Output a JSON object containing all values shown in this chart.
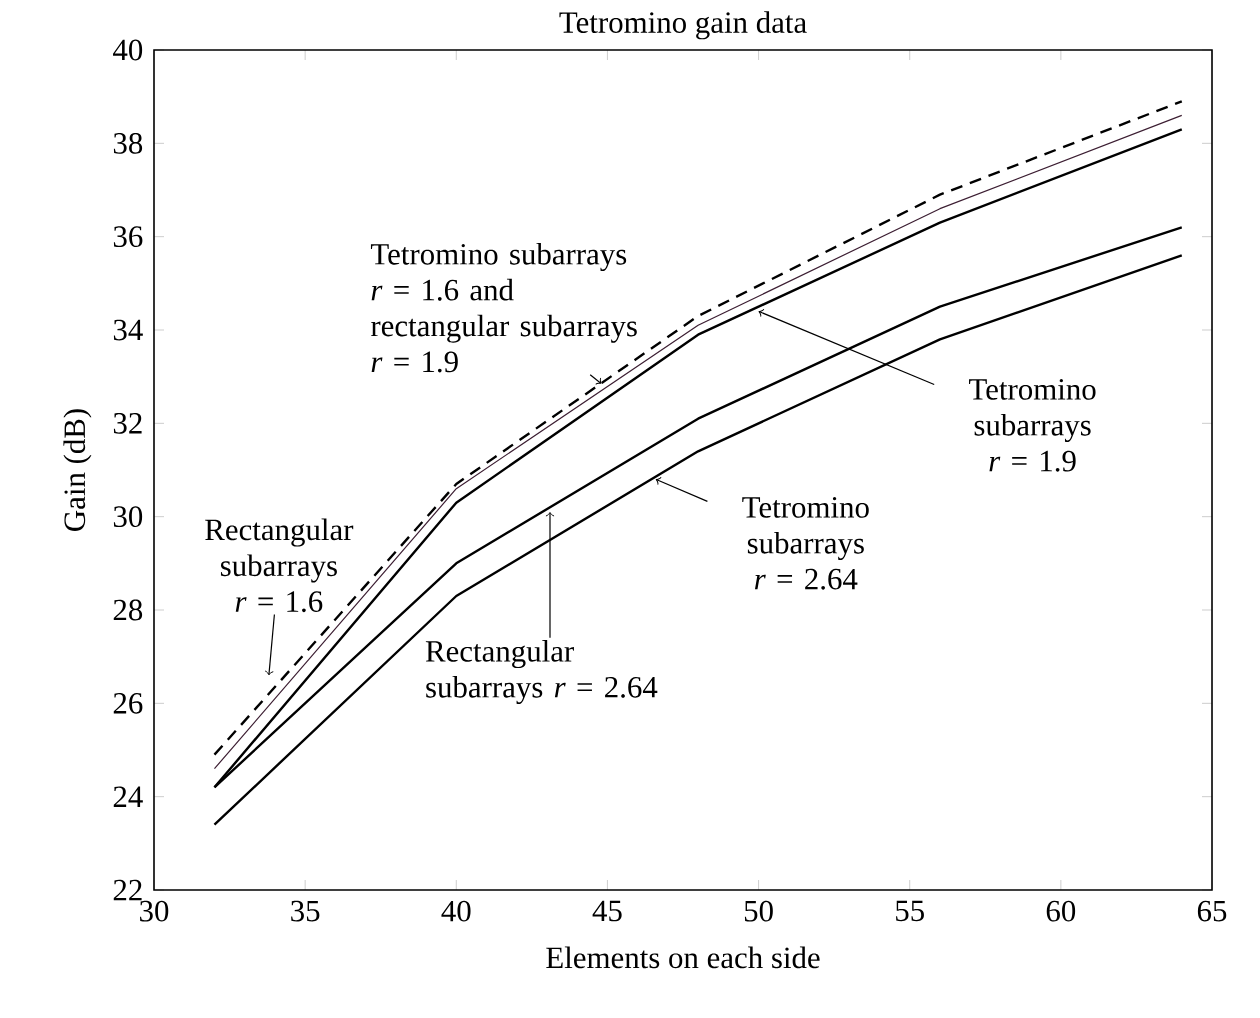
{
  "chart_data": {
    "type": "line",
    "title": "Tetromino gain data",
    "xlabel": "Elements on each side",
    "ylabel": "Gain (dB)",
    "x": [
      32,
      40,
      48,
      56,
      64
    ],
    "series": [
      {
        "color": "#000000",
        "line_style": "dashed",
        "values": [
          24.9,
          30.7,
          34.3,
          36.9,
          38.9
        ]
      },
      {
        "color": "#3c1e32",
        "values": [
          24.6,
          30.6,
          34.1,
          36.6,
          38.6
        ]
      },
      {
        "color": "#000000",
        "values": [
          24.2,
          30.3,
          33.9,
          36.3,
          38.3
        ]
      },
      {
        "color": "#000000",
        "values": [
          24.2,
          29.0,
          32.1,
          34.5,
          36.2
        ]
      },
      {
        "color": "#000000",
        "values": [
          23.4,
          28.3,
          31.4,
          33.8,
          35.6
        ]
      }
    ],
    "xlim": [
      30,
      65
    ],
    "ylim": [
      22,
      40
    ],
    "xticks": [
      30,
      35,
      40,
      45,
      50,
      55,
      60,
      65
    ],
    "yticks": [
      22,
      24,
      26,
      28,
      30,
      32,
      34,
      36,
      38,
      40
    ],
    "annotations": [
      {
        "text": "Rectangular subarrays *r* = 1.6",
        "x": 33.8,
        "y": 26.6
      },
      {
        "text": "Tetromino subarrays *r* = 1.6 and rectangular subarrays *r* = 1.9",
        "x": 44.8,
        "y": 32.85
      },
      {
        "text": "Tetromino subarrays *r* = 1.9",
        "x": 50.0,
        "y": 34.4
      },
      {
        "text": "Tetromino subarrays *r* = 2.64",
        "x": 46.6,
        "y": 30.8
      },
      {
        "text": "Rectangular subarrays *r* = 2.64",
        "x": 43.1,
        "y": 30.1
      }
    ]
  }
}
